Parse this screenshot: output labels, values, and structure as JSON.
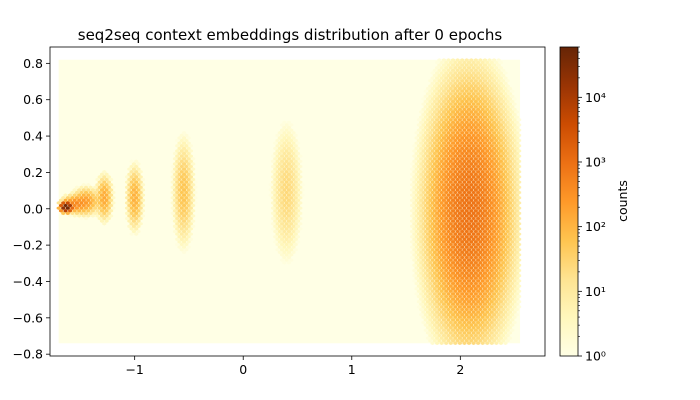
{
  "chart_data": {
    "type": "heatmap",
    "subtype": "hexbin",
    "title": "seq2seq context embeddings distribution after 0 epochs",
    "xlabel": "",
    "ylabel": "",
    "xlim": [
      -1.78,
      2.78
    ],
    "ylim": [
      -0.81,
      0.89
    ],
    "x_ticks": [
      -1,
      0,
      1,
      2
    ],
    "x_tick_labels": [
      "−1",
      "0",
      "1",
      "2"
    ],
    "y_ticks": [
      -0.8,
      -0.6,
      -0.4,
      -0.2,
      0.0,
      0.2,
      0.4,
      0.6,
      0.8
    ],
    "y_tick_labels": [
      "−0.8",
      "−0.6",
      "−0.4",
      "−0.2",
      "0.0",
      "0.2",
      "0.4",
      "0.6",
      "0.8"
    ],
    "hexbin_extent": {
      "x": [
        -1.7,
        2.55
      ],
      "y": [
        -0.74,
        0.82
      ]
    },
    "colormap": "YlOrBr",
    "background_color": "#ffffe5",
    "clusters": [
      {
        "x_center": -1.63,
        "y_center": 0.01,
        "x_spread": 0.02,
        "y_spread": 0.01,
        "peak_count": 60000
      },
      {
        "x_center": -1.55,
        "y_center": 0.025,
        "x_spread": 0.05,
        "y_spread": 0.02,
        "peak_count": 400
      },
      {
        "x_center": -1.45,
        "y_center": 0.04,
        "x_spread": 0.05,
        "y_spread": 0.03,
        "peak_count": 200
      },
      {
        "x_center": -1.28,
        "y_center": 0.06,
        "x_spread": 0.03,
        "y_spread": 0.05,
        "peak_count": 150
      },
      {
        "x_center": -1.0,
        "y_center": 0.06,
        "x_spread": 0.03,
        "y_spread": 0.07,
        "peak_count": 120
      },
      {
        "x_center": -0.55,
        "y_center": 0.09,
        "x_spread": 0.04,
        "y_spread": 0.12,
        "peak_count": 60
      },
      {
        "x_center": 0.4,
        "y_center": 0.09,
        "x_spread": 0.06,
        "y_spread": 0.16,
        "peak_count": 25
      },
      {
        "x_center": 2.08,
        "y_center": -0.02,
        "x_spread": 0.15,
        "y_spread": 0.27,
        "peak_count": 900
      }
    ],
    "colorbar": {
      "label": "counts",
      "scale": "log",
      "range": [
        1,
        60000
      ],
      "tick_labels": [
        "10⁰",
        "10¹",
        "10²",
        "10³",
        "10⁴"
      ]
    }
  }
}
